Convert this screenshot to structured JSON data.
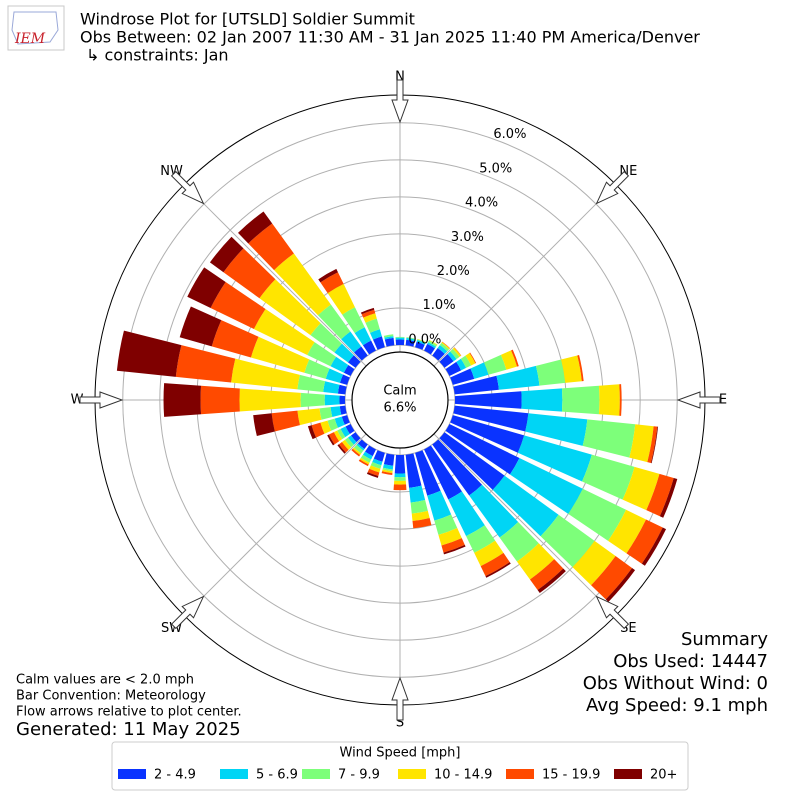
{
  "header": {
    "logo": "IEM",
    "title": "Windrose Plot for [UTSLD] Soldier Summit",
    "subtitle": "Obs Between: 02 Jan 2007 11:30 AM - 31 Jan 2025 11:40 PM America/Denver",
    "constraints": "↳ constraints: Jan"
  },
  "chart_data": {
    "type": "windrose",
    "directions": [
      0,
      10,
      20,
      30,
      40,
      50,
      60,
      70,
      80,
      90,
      100,
      110,
      120,
      130,
      140,
      150,
      160,
      170,
      180,
      190,
      200,
      210,
      220,
      230,
      240,
      250,
      260,
      270,
      280,
      290,
      300,
      310,
      320,
      330,
      340,
      350
    ],
    "compass": [
      "N",
      "NE",
      "E",
      "SE",
      "S",
      "SW",
      "W",
      "NW"
    ],
    "calm_label": "Calm",
    "calm_value": 6.6,
    "calm_value_label": "6.6%",
    "rlim": [
      0,
      6.75
    ],
    "rticks": [
      {
        "value": 0,
        "label": "0.0%"
      },
      {
        "value": 1,
        "label": "1.0%"
      },
      {
        "value": 2,
        "label": "2.0%"
      },
      {
        "value": 3,
        "label": "3.0%"
      },
      {
        "value": 4,
        "label": "4.0%"
      },
      {
        "value": 5,
        "label": "5.0%"
      },
      {
        "value": 6,
        "label": "6.0%"
      }
    ],
    "grid": true,
    "legend_title": "Wind Speed [mph]",
    "series": [
      {
        "name": "2 - 4.9",
        "color": "#0a33ff",
        "values": [
          0.15,
          0.15,
          0.15,
          0.2,
          0.25,
          0.3,
          0.35,
          0.6,
          1.2,
          1.8,
          2.0,
          2.0,
          2.1,
          2.0,
          1.7,
          1.5,
          1.2,
          0.9,
          0.5,
          0.3,
          0.25,
          0.2,
          0.15,
          0.15,
          0.15,
          0.15,
          0.15,
          0.15,
          0.2,
          0.2,
          0.2,
          0.25,
          0.3,
          0.3,
          0.3,
          0.2
        ]
      },
      {
        "name": "5 - 6.9",
        "color": "#00d5f5",
        "values": [
          0.05,
          0.05,
          0.05,
          0.05,
          0.1,
          0.1,
          0.15,
          0.4,
          1.1,
          1.1,
          1.6,
          1.9,
          1.9,
          1.8,
          1.4,
          1.1,
          0.7,
          0.4,
          0.1,
          0.1,
          0.1,
          0.1,
          0.05,
          0.1,
          0.15,
          0.2,
          0.25,
          0.4,
          0.4,
          0.4,
          0.4,
          0.45,
          0.5,
          0.4,
          0.2,
          0.05
        ]
      },
      {
        "name": "7 - 9.9",
        "color": "#7dff7a",
        "values": [
          0.02,
          0.02,
          0.02,
          0.05,
          0.07,
          0.1,
          0.15,
          0.5,
          0.7,
          1.0,
          1.3,
          1.2,
          1.3,
          1.2,
          0.8,
          0.5,
          0.4,
          0.3,
          0.1,
          0.05,
          0.1,
          0.1,
          0.1,
          0.1,
          0.1,
          0.2,
          0.3,
          0.65,
          0.7,
          0.6,
          0.7,
          0.8,
          0.9,
          0.6,
          0.3,
          0.05
        ]
      },
      {
        "name": "10 - 14.9",
        "color": "#ffe500",
        "values": [
          0,
          0,
          0.01,
          0.02,
          0.03,
          0.05,
          0.13,
          0.3,
          0.45,
          0.55,
          0.5,
          0.7,
          0.6,
          0.7,
          0.6,
          0.4,
          0.3,
          0.2,
          0.1,
          0.05,
          0.1,
          0.05,
          0.05,
          0.1,
          0.1,
          0.2,
          0.6,
          1.65,
          1.8,
          1.5,
          1.6,
          1.7,
          1.7,
          0.7,
          0.15,
          0
        ]
      },
      {
        "name": "15 - 19.9",
        "color": "#ff4a00",
        "values": [
          0,
          0,
          0,
          0,
          0.01,
          0.01,
          0.02,
          0.05,
          0.05,
          0.05,
          0.1,
          0.4,
          0.5,
          0.55,
          0.35,
          0.3,
          0.2,
          0.2,
          0.15,
          0.05,
          0.1,
          0.05,
          0.05,
          0.1,
          0.15,
          0.25,
          0.7,
          1.05,
          1.5,
          1.1,
          1.3,
          1.2,
          1.0,
          0.35,
          0.1,
          0
        ]
      },
      {
        "name": "20+",
        "color": "#7f0000",
        "values": [
          0,
          0,
          0,
          0,
          0,
          0,
          0,
          0,
          0,
          0,
          0.02,
          0.1,
          0.1,
          0.1,
          0.1,
          0.05,
          0.05,
          0,
          0,
          0,
          0.05,
          0,
          0,
          0.05,
          0.05,
          0.1,
          0.5,
          1.0,
          1.6,
          0.9,
          0.7,
          0.45,
          0.4,
          0.1,
          0.05,
          0
        ]
      }
    ]
  },
  "summary": [
    "Summary",
    "Obs Used: 14447",
    "Obs Without Wind: 0",
    "Avg Speed: 9.1 mph"
  ],
  "notes": [
    "Calm values are < 2.0 mph",
    "Bar Convention: Meteorology",
    "Flow arrows relative to plot center."
  ],
  "generated": "Generated: 11 May 2025"
}
